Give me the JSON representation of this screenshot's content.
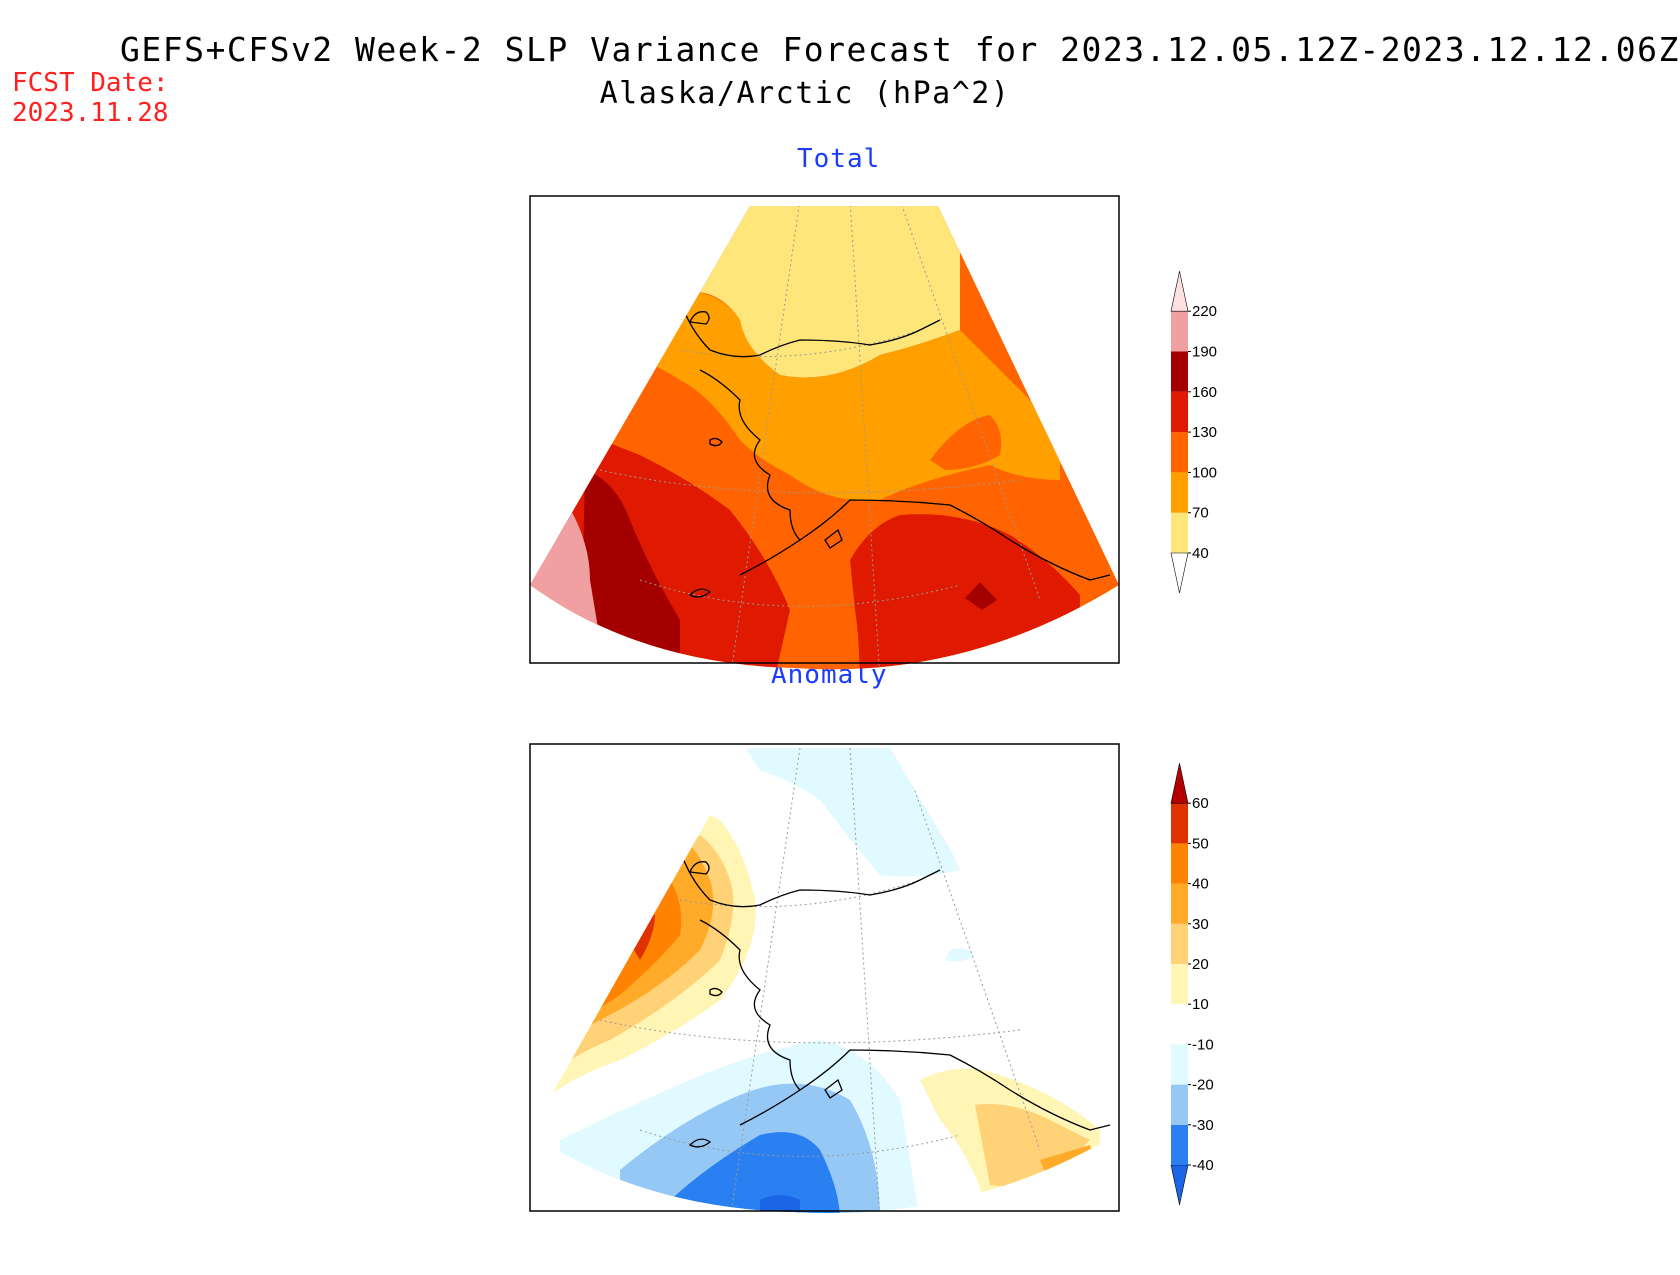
{
  "header": {
    "title": "GEFS+CFSv2 Week-2 SLP Variance Forecast for 2023.12.05.12Z-2023.12.12.06Z",
    "subtitle": "Alaska/Arctic (hPa^2)",
    "fcst_label": "FCST Date:",
    "fcst_date": "2023.11.28"
  },
  "panels": {
    "total": {
      "title": "Total",
      "colorbar": {
        "labels": [
          "40",
          "70",
          "100",
          "130",
          "160",
          "190",
          "220"
        ],
        "colors": [
          "#ffe67a",
          "#ffa000",
          "#ff6400",
          "#e01a00",
          "#a50000",
          "#f0a0a0",
          "#ffe0e0"
        ]
      }
    },
    "anomaly": {
      "title": "Anomaly",
      "colorbar": {
        "labels": [
          "-40",
          "-30",
          "-20",
          "-10",
          "10",
          "20",
          "30",
          "40",
          "50",
          "60"
        ],
        "colors": [
          "#1a66e6",
          "#2a80f0",
          "#96c8f5",
          "#e0faff",
          "#ffffff",
          "#fff5b4",
          "#ffd278",
          "#ffaa28",
          "#ff8200",
          "#e03200",
          "#b40000"
        ]
      }
    }
  }
}
